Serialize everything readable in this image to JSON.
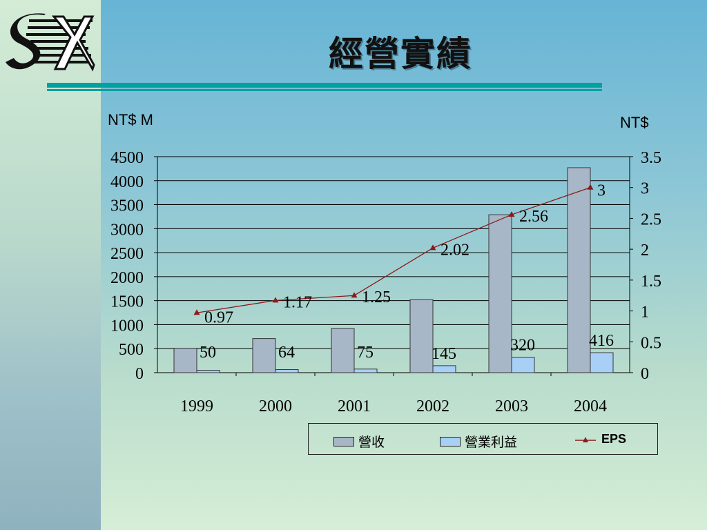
{
  "slide": {
    "title": "經營實績"
  },
  "units": {
    "left": "NT$ M",
    "right": "NT$"
  },
  "colors": {
    "revenue": "#a7b7c7",
    "operating_profit": "#a8d0f6",
    "eps_line": "#8b1a1a",
    "accent_rule": "#00a1a0"
  },
  "chart_data": {
    "type": "bar",
    "categories": [
      "1999",
      "2000",
      "2001",
      "2002",
      "2003",
      "2004"
    ],
    "series": [
      {
        "name": "營收",
        "axis": "left",
        "type": "bar",
        "values": [
          510,
          710,
          920,
          1520,
          3290,
          4270
        ]
      },
      {
        "name": "營業利益",
        "axis": "left",
        "type": "bar",
        "values": [
          50,
          64,
          75,
          145,
          320,
          416
        ],
        "labels": [
          "50",
          "64",
          "75",
          "145",
          "320",
          "416"
        ]
      },
      {
        "name": "EPS",
        "axis": "right",
        "type": "line",
        "values": [
          0.97,
          1.17,
          1.25,
          2.02,
          2.56,
          3
        ],
        "labels": [
          "0.97",
          "1.17",
          "1.25",
          "2.02",
          "2.56",
          "3"
        ]
      }
    ],
    "y_left": {
      "label": "NT$ M",
      "range": [
        0,
        4500
      ],
      "ticks": [
        "0",
        "500",
        "1000",
        "1500",
        "2000",
        "2500",
        "3000",
        "3500",
        "4000",
        "4500"
      ]
    },
    "y_right": {
      "label": "NT$",
      "range": [
        0,
        3.5
      ],
      "ticks": [
        "0",
        "0.5",
        "1",
        "1.5",
        "2",
        "2.5",
        "3",
        "3.5"
      ]
    },
    "grid": true,
    "legend": "bottom-right"
  }
}
